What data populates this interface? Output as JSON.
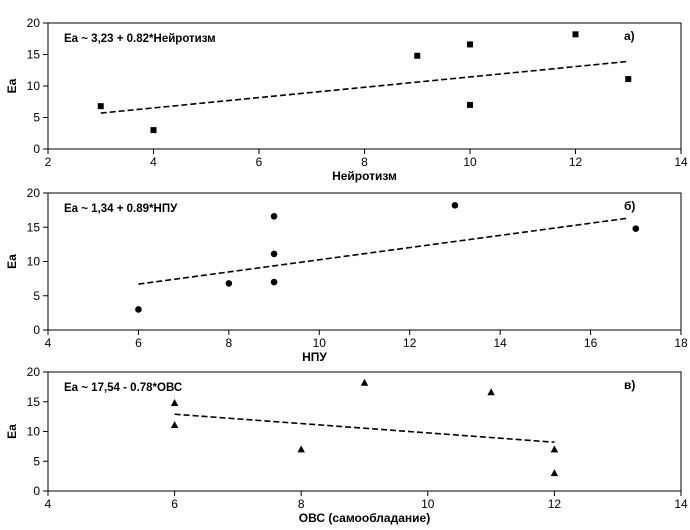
{
  "chart_data": [
    {
      "type": "scatter",
      "marker": "square",
      "panel_label": "а)",
      "equation": "Ea ~ 3,23 + 0.82*Нейротизм",
      "xlabel": "Нейротизм",
      "ylabel": "Ea",
      "xlim": [
        2,
        14
      ],
      "ylim": [
        0,
        20
      ],
      "xticks": [
        2,
        4,
        6,
        8,
        10,
        12,
        14
      ],
      "yticks": [
        0,
        5,
        10,
        15,
        20
      ],
      "points": [
        {
          "x": 3,
          "y": 6.8
        },
        {
          "x": 4,
          "y": 3.0
        },
        {
          "x": 9,
          "y": 14.8
        },
        {
          "x": 10,
          "y": 16.6
        },
        {
          "x": 10,
          "y": 7.0
        },
        {
          "x": 12,
          "y": 18.2
        },
        {
          "x": 13,
          "y": 11.1
        }
      ],
      "fit_line": {
        "x": [
          3,
          13
        ],
        "y": [
          5.7,
          13.9
        ]
      }
    },
    {
      "type": "scatter",
      "marker": "circle",
      "panel_label": "б)",
      "equation": "Ea ~ 1,34 + 0.89*НПУ",
      "xlabel": "НПУ",
      "ylabel": "Ea",
      "xlim": [
        4,
        18
      ],
      "ylim": [
        0,
        20
      ],
      "xticks": [
        4,
        6,
        8,
        10,
        12,
        14,
        16,
        18
      ],
      "yticks": [
        0,
        5,
        10,
        15,
        20
      ],
      "points": [
        {
          "x": 6,
          "y": 3.0
        },
        {
          "x": 8,
          "y": 6.8
        },
        {
          "x": 9,
          "y": 16.6
        },
        {
          "x": 9,
          "y": 11.1
        },
        {
          "x": 9,
          "y": 7.0
        },
        {
          "x": 13,
          "y": 18.2
        },
        {
          "x": 17,
          "y": 14.8
        }
      ],
      "fit_line": {
        "x": [
          6,
          16.8
        ],
        "y": [
          6.7,
          16.3
        ]
      }
    },
    {
      "type": "scatter",
      "marker": "triangle",
      "panel_label": "в)",
      "equation": "Ea ~ 17,54 - 0.78*ОВС",
      "xlabel": "ОВС (самообладание)",
      "ylabel": "Ea",
      "xlim": [
        4,
        14
      ],
      "ylim": [
        0,
        20
      ],
      "xticks": [
        4,
        6,
        8,
        10,
        12,
        14
      ],
      "yticks": [
        0,
        5,
        10,
        15,
        20
      ],
      "points": [
        {
          "x": 6,
          "y": 14.8
        },
        {
          "x": 6,
          "y": 11.1
        },
        {
          "x": 8,
          "y": 7.0
        },
        {
          "x": 9,
          "y": 18.2
        },
        {
          "x": 11,
          "y": 16.6
        },
        {
          "x": 12,
          "y": 7.0
        },
        {
          "x": 12,
          "y": 3.0
        }
      ],
      "fit_line": {
        "x": [
          6,
          12
        ],
        "y": [
          12.9,
          8.2
        ]
      }
    }
  ]
}
